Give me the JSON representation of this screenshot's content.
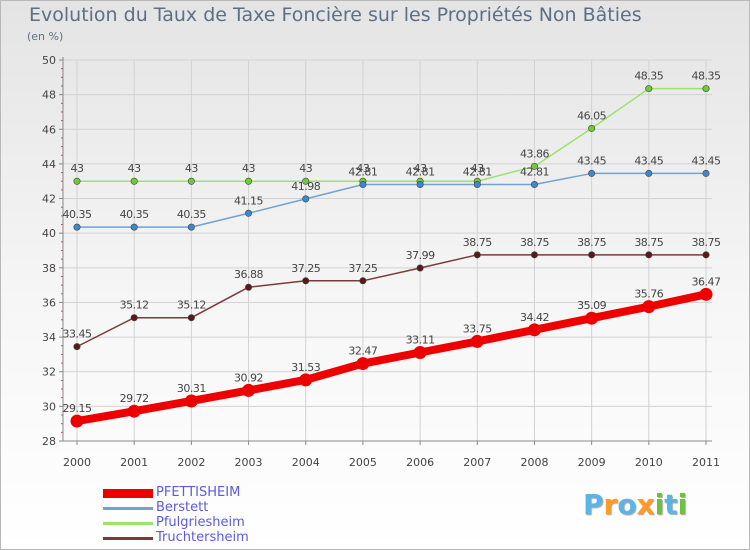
{
  "title": "Evolution du Taux de Taxe Foncière sur les Propriétés Non Bâties",
  "subtitle": "(en %)",
  "logo": [
    "P",
    "r",
    "o",
    "x",
    "i",
    "t",
    "i"
  ],
  "logo_colors": [
    "#5ab4e6",
    "#ff9b28",
    "#5ab4e6",
    "#ff9b28",
    "#6bc23c",
    "#5ab4e6",
    "#6bc23c"
  ],
  "chart_data": {
    "type": "line",
    "title": "Evolution du Taux de Taxe Foncière sur les Propriétés Non Bâties",
    "ylabel": "(en %)",
    "xlabel": "",
    "x": [
      "2000",
      "2001",
      "2002",
      "2003",
      "2004",
      "2005",
      "2006",
      "2007",
      "2008",
      "2009",
      "2010",
      "2011"
    ],
    "ylim": [
      28,
      50
    ],
    "yticks": [
      "28",
      "30",
      "32",
      "34",
      "36",
      "38",
      "40",
      "42",
      "44",
      "46",
      "48",
      "50"
    ],
    "legend_position": "bottom-left",
    "series": [
      {
        "name": "PFETTISHEIM",
        "color": "#ee0000",
        "marker": "#ee0000",
        "weight": "thick",
        "values": [
          29.15,
          29.72,
          30.31,
          30.92,
          31.53,
          32.47,
          33.11,
          33.75,
          34.42,
          35.09,
          35.76,
          36.47
        ],
        "labels": [
          "29.15",
          "29.72",
          "30.31",
          "30.92",
          "31.53",
          "32.47",
          "33.11",
          "33.75",
          "34.42",
          "35.09",
          "35.76",
          "36.47"
        ]
      },
      {
        "name": "Berstett",
        "color": "#72a2cf",
        "marker": "#3d88c9",
        "weight": "thin",
        "values": [
          40.35,
          40.35,
          40.35,
          41.15,
          41.98,
          42.81,
          42.81,
          42.81,
          42.81,
          43.45,
          43.45,
          43.45
        ],
        "labels": [
          "40.35",
          "40.35",
          "40.35",
          "41.15",
          "41.98",
          "42.81",
          "42.81",
          "42.81",
          "42.81",
          "43.45",
          "43.45",
          "43.45"
        ]
      },
      {
        "name": "Pfulgriesheim",
        "color": "#9be36a",
        "marker": "#6ecb34",
        "weight": "thin",
        "values": [
          43,
          43,
          43,
          43,
          43,
          43,
          43,
          43,
          43.86,
          46.05,
          48.35,
          48.35
        ],
        "labels": [
          "43",
          "43",
          "43",
          "43",
          "43",
          "43",
          "43",
          "43",
          "43.86",
          "46.05",
          "48.35",
          "48.35"
        ]
      },
      {
        "name": "Truchtersheim",
        "color": "#7a3a3a",
        "marker": "#5a1a1a",
        "weight": "thin",
        "values": [
          33.45,
          35.12,
          35.12,
          36.88,
          37.25,
          37.25,
          37.99,
          38.75,
          38.75,
          38.75,
          38.75,
          38.75
        ],
        "labels": [
          "33.45",
          "35.12",
          "35.12",
          "36.88",
          "37.25",
          "37.25",
          "37.99",
          "38.75",
          "38.75",
          "38.75",
          "38.75",
          "38.75"
        ]
      }
    ]
  }
}
